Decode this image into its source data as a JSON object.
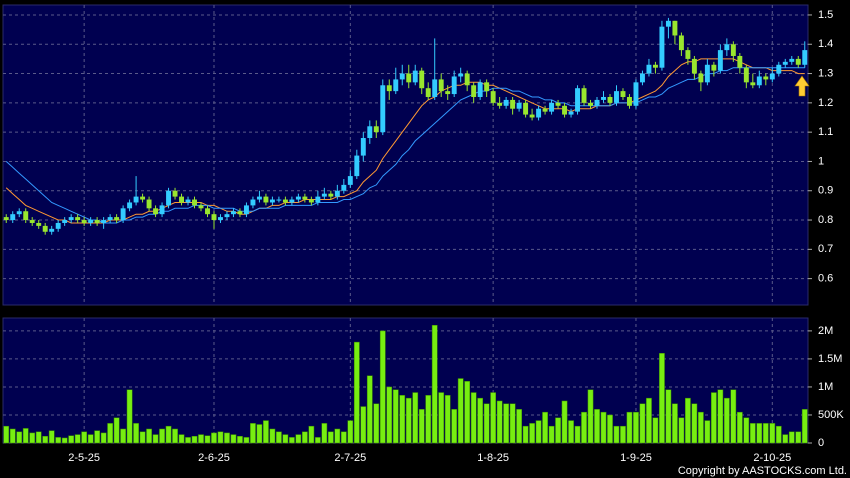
{
  "chart_data": {
    "type": "candlestick",
    "categories": [
      null,
      null,
      null,
      null,
      null,
      null,
      null,
      null,
      null,
      null,
      null,
      null,
      "2-5-25",
      null,
      null,
      null,
      null,
      null,
      null,
      null,
      null,
      null,
      null,
      null,
      null,
      null,
      null,
      null,
      null,
      null,
      null,
      null,
      "2-6-25",
      null,
      null,
      null,
      null,
      null,
      null,
      null,
      null,
      null,
      null,
      null,
      null,
      null,
      null,
      null,
      null,
      null,
      null,
      null,
      null,
      "2-7-25",
      null,
      null,
      null,
      null,
      null,
      null,
      null,
      null,
      null,
      null,
      null,
      null,
      null,
      null,
      null,
      null,
      null,
      null,
      null,
      null,
      null,
      "1-8-25",
      null,
      null,
      null,
      null,
      null,
      null,
      null,
      null,
      null,
      null,
      null,
      null,
      null,
      null,
      null,
      null,
      null,
      null,
      null,
      null,
      null,
      "1-9-25",
      null,
      null,
      null,
      null,
      null,
      null,
      null,
      null,
      null,
      null,
      null,
      null,
      null,
      null,
      null,
      null,
      null,
      null,
      null,
      null,
      "2-10-25",
      null,
      null,
      null,
      null,
      null
    ],
    "ohlc": [
      [
        0.81,
        0.82,
        0.79,
        0.8
      ],
      [
        0.8,
        0.83,
        0.79,
        0.82
      ],
      [
        0.82,
        0.84,
        0.81,
        0.83
      ],
      [
        0.83,
        0.84,
        0.79,
        0.8
      ],
      [
        0.8,
        0.81,
        0.78,
        0.79
      ],
      [
        0.79,
        0.8,
        0.77,
        0.78
      ],
      [
        0.78,
        0.79,
        0.75,
        0.76
      ],
      [
        0.76,
        0.78,
        0.75,
        0.77
      ],
      [
        0.77,
        0.8,
        0.76,
        0.79
      ],
      [
        0.79,
        0.81,
        0.78,
        0.8
      ],
      [
        0.8,
        0.82,
        0.79,
        0.81
      ],
      [
        0.81,
        0.82,
        0.79,
        0.8
      ],
      [
        0.8,
        0.81,
        0.78,
        0.79
      ],
      [
        0.79,
        0.81,
        0.78,
        0.8
      ],
      [
        0.8,
        0.81,
        0.78,
        0.79
      ],
      [
        0.79,
        0.81,
        0.77,
        0.8
      ],
      [
        0.8,
        0.82,
        0.79,
        0.81
      ],
      [
        0.81,
        0.82,
        0.79,
        0.8
      ],
      [
        0.8,
        0.85,
        0.79,
        0.84
      ],
      [
        0.84,
        0.87,
        0.83,
        0.86
      ],
      [
        0.86,
        0.95,
        0.85,
        0.88
      ],
      [
        0.88,
        0.89,
        0.86,
        0.87
      ],
      [
        0.87,
        0.88,
        0.83,
        0.84
      ],
      [
        0.84,
        0.85,
        0.81,
        0.82
      ],
      [
        0.82,
        0.86,
        0.81,
        0.85
      ],
      [
        0.85,
        0.91,
        0.84,
        0.9
      ],
      [
        0.9,
        0.91,
        0.87,
        0.88
      ],
      [
        0.88,
        0.89,
        0.85,
        0.86
      ],
      [
        0.86,
        0.88,
        0.85,
        0.87
      ],
      [
        0.87,
        0.88,
        0.84,
        0.85
      ],
      [
        0.85,
        0.86,
        0.83,
        0.84
      ],
      [
        0.84,
        0.85,
        0.81,
        0.82
      ],
      [
        0.82,
        0.83,
        0.77,
        0.8
      ],
      [
        0.8,
        0.82,
        0.79,
        0.81
      ],
      [
        0.81,
        0.83,
        0.8,
        0.82
      ],
      [
        0.82,
        0.84,
        0.81,
        0.83
      ],
      [
        0.83,
        0.84,
        0.81,
        0.82
      ],
      [
        0.82,
        0.86,
        0.81,
        0.85
      ],
      [
        0.85,
        0.88,
        0.84,
        0.87
      ],
      [
        0.87,
        0.9,
        0.86,
        0.88
      ],
      [
        0.88,
        0.89,
        0.85,
        0.86
      ],
      [
        0.86,
        0.88,
        0.85,
        0.87
      ],
      [
        0.87,
        0.88,
        0.86,
        0.87
      ],
      [
        0.87,
        0.88,
        0.85,
        0.86
      ],
      [
        0.86,
        0.88,
        0.85,
        0.87
      ],
      [
        0.87,
        0.89,
        0.86,
        0.88
      ],
      [
        0.88,
        0.89,
        0.86,
        0.87
      ],
      [
        0.87,
        0.88,
        0.85,
        0.86
      ],
      [
        0.86,
        0.9,
        0.85,
        0.88
      ],
      [
        0.88,
        0.91,
        0.87,
        0.89
      ],
      [
        0.89,
        0.9,
        0.87,
        0.88
      ],
      [
        0.88,
        0.92,
        0.87,
        0.9
      ],
      [
        0.9,
        0.94,
        0.89,
        0.92
      ],
      [
        0.92,
        0.97,
        0.91,
        0.95
      ],
      [
        0.95,
        1.04,
        0.94,
        1.02
      ],
      [
        1.02,
        1.1,
        1.0,
        1.08
      ],
      [
        1.08,
        1.14,
        1.06,
        1.12
      ],
      [
        1.12,
        1.14,
        1.08,
        1.1
      ],
      [
        1.1,
        1.28,
        1.09,
        1.26
      ],
      [
        1.26,
        1.28,
        1.21,
        1.24
      ],
      [
        1.24,
        1.32,
        1.23,
        1.28
      ],
      [
        1.28,
        1.33,
        1.26,
        1.3
      ],
      [
        1.3,
        1.33,
        1.25,
        1.27
      ],
      [
        1.27,
        1.33,
        1.26,
        1.31
      ],
      [
        1.31,
        1.32,
        1.23,
        1.25
      ],
      [
        1.25,
        1.27,
        1.21,
        1.22
      ],
      [
        1.22,
        1.42,
        1.21,
        1.28
      ],
      [
        1.28,
        1.3,
        1.22,
        1.24
      ],
      [
        1.24,
        1.26,
        1.21,
        1.23
      ],
      [
        1.23,
        1.31,
        1.22,
        1.29
      ],
      [
        1.29,
        1.32,
        1.27,
        1.3
      ],
      [
        1.3,
        1.31,
        1.24,
        1.26
      ],
      [
        1.26,
        1.27,
        1.2,
        1.22
      ],
      [
        1.22,
        1.28,
        1.21,
        1.27
      ],
      [
        1.27,
        1.28,
        1.22,
        1.24
      ],
      [
        1.24,
        1.25,
        1.19,
        1.2
      ],
      [
        1.2,
        1.22,
        1.18,
        1.19
      ],
      [
        1.19,
        1.22,
        1.18,
        1.21
      ],
      [
        1.21,
        1.22,
        1.16,
        1.18
      ],
      [
        1.18,
        1.21,
        1.17,
        1.2
      ],
      [
        1.2,
        1.21,
        1.15,
        1.16
      ],
      [
        1.16,
        1.18,
        1.14,
        1.15
      ],
      [
        1.15,
        1.19,
        1.14,
        1.18
      ],
      [
        1.18,
        1.19,
        1.16,
        1.17
      ],
      [
        1.17,
        1.21,
        1.16,
        1.2
      ],
      [
        1.2,
        1.21,
        1.18,
        1.19
      ],
      [
        1.19,
        1.2,
        1.15,
        1.16
      ],
      [
        1.16,
        1.18,
        1.15,
        1.17
      ],
      [
        1.17,
        1.26,
        1.16,
        1.25
      ],
      [
        1.25,
        1.26,
        1.19,
        1.2
      ],
      [
        1.2,
        1.21,
        1.18,
        1.19
      ],
      [
        1.19,
        1.22,
        1.18,
        1.21
      ],
      [
        1.21,
        1.24,
        1.2,
        1.22
      ],
      [
        1.22,
        1.23,
        1.19,
        1.2
      ],
      [
        1.2,
        1.26,
        1.19,
        1.24
      ],
      [
        1.24,
        1.25,
        1.21,
        1.22
      ],
      [
        1.22,
        1.23,
        1.18,
        1.19
      ],
      [
        1.19,
        1.28,
        1.18,
        1.27
      ],
      [
        1.27,
        1.31,
        1.26,
        1.3
      ],
      [
        1.3,
        1.35,
        1.29,
        1.33
      ],
      [
        1.33,
        1.34,
        1.3,
        1.32
      ],
      [
        1.32,
        1.48,
        1.31,
        1.46
      ],
      [
        1.46,
        1.49,
        1.42,
        1.48
      ],
      [
        1.48,
        1.48,
        1.4,
        1.43
      ],
      [
        1.43,
        1.44,
        1.36,
        1.38
      ],
      [
        1.38,
        1.39,
        1.33,
        1.35
      ],
      [
        1.35,
        1.36,
        1.28,
        1.3
      ],
      [
        1.3,
        1.31,
        1.24,
        1.27
      ],
      [
        1.27,
        1.35,
        1.26,
        1.33
      ],
      [
        1.33,
        1.34,
        1.29,
        1.31
      ],
      [
        1.31,
        1.4,
        1.3,
        1.38
      ],
      [
        1.38,
        1.42,
        1.36,
        1.4
      ],
      [
        1.4,
        1.41,
        1.34,
        1.36
      ],
      [
        1.36,
        1.37,
        1.3,
        1.32
      ],
      [
        1.32,
        1.33,
        1.25,
        1.27
      ],
      [
        1.27,
        1.3,
        1.25,
        1.26
      ],
      [
        1.26,
        1.31,
        1.25,
        1.29
      ],
      [
        1.29,
        1.3,
        1.26,
        1.28
      ],
      [
        1.28,
        1.32,
        1.27,
        1.3
      ],
      [
        1.3,
        1.34,
        1.29,
        1.33
      ],
      [
        1.33,
        1.35,
        1.32,
        1.34
      ],
      [
        1.34,
        1.36,
        1.33,
        1.35
      ],
      [
        1.35,
        1.36,
        1.32,
        1.33
      ],
      [
        1.33,
        1.41,
        1.32,
        1.38
      ]
    ],
    "up_color": "#33ccff",
    "down_color": "#99e62e",
    "moving_averages": [
      {
        "color": "#ff9933",
        "values": [
          0.91,
          0.89,
          0.87,
          0.85,
          0.84,
          0.83,
          0.82,
          0.81,
          0.8,
          0.8,
          0.79,
          0.79,
          0.79,
          0.79,
          0.79,
          0.79,
          0.8,
          0.8,
          0.8,
          0.81,
          0.82,
          0.82,
          0.83,
          0.83,
          0.84,
          0.85,
          0.86,
          0.86,
          0.86,
          0.86,
          0.86,
          0.85,
          0.85,
          0.84,
          0.83,
          0.83,
          0.82,
          0.82,
          0.83,
          0.84,
          0.84,
          0.85,
          0.85,
          0.86,
          0.86,
          0.86,
          0.87,
          0.87,
          0.87,
          0.87,
          0.87,
          0.88,
          0.88,
          0.89,
          0.9,
          0.93,
          0.95,
          0.97,
          1.01,
          1.04,
          1.07,
          1.1,
          1.13,
          1.16,
          1.19,
          1.21,
          1.22,
          1.24,
          1.25,
          1.26,
          1.26,
          1.27,
          1.27,
          1.27,
          1.26,
          1.26,
          1.25,
          1.24,
          1.23,
          1.22,
          1.21,
          1.2,
          1.19,
          1.18,
          1.18,
          1.18,
          1.18,
          1.17,
          1.18,
          1.18,
          1.18,
          1.19,
          1.19,
          1.19,
          1.2,
          1.2,
          1.2,
          1.21,
          1.22,
          1.23,
          1.24,
          1.26,
          1.29,
          1.31,
          1.33,
          1.34,
          1.34,
          1.35,
          1.35,
          1.35,
          1.35,
          1.35,
          1.35,
          1.34,
          1.33,
          1.32,
          1.32,
          1.32,
          1.31,
          1.31,
          1.31,
          1.31,
          1.3,
          1.3
        ]
      },
      {
        "color": "#3399ff",
        "values": [
          1.0,
          0.98,
          0.96,
          0.94,
          0.92,
          0.9,
          0.88,
          0.86,
          0.85,
          0.84,
          0.83,
          0.82,
          0.81,
          0.8,
          0.8,
          0.79,
          0.79,
          0.79,
          0.8,
          0.8,
          0.81,
          0.81,
          0.82,
          0.82,
          0.83,
          0.83,
          0.84,
          0.84,
          0.84,
          0.85,
          0.85,
          0.85,
          0.84,
          0.84,
          0.84,
          0.84,
          0.83,
          0.83,
          0.83,
          0.84,
          0.84,
          0.84,
          0.84,
          0.85,
          0.85,
          0.85,
          0.85,
          0.85,
          0.86,
          0.86,
          0.86,
          0.86,
          0.87,
          0.87,
          0.88,
          0.89,
          0.91,
          0.92,
          0.95,
          0.97,
          0.99,
          1.02,
          1.04,
          1.07,
          1.09,
          1.11,
          1.13,
          1.15,
          1.17,
          1.19,
          1.21,
          1.22,
          1.23,
          1.24,
          1.24,
          1.25,
          1.25,
          1.25,
          1.24,
          1.24,
          1.23,
          1.22,
          1.22,
          1.21,
          1.21,
          1.2,
          1.2,
          1.19,
          1.19,
          1.19,
          1.19,
          1.19,
          1.19,
          1.19,
          1.2,
          1.2,
          1.2,
          1.2,
          1.21,
          1.22,
          1.22,
          1.23,
          1.25,
          1.26,
          1.27,
          1.28,
          1.28,
          1.29,
          1.3,
          1.3,
          1.31,
          1.31,
          1.32,
          1.32,
          1.32,
          1.32,
          1.32,
          1.32,
          1.32,
          1.32,
          1.32,
          1.32,
          1.32,
          1.32
        ]
      }
    ],
    "ylim": [
      0.51,
      1.534
    ],
    "yticks": [
      0.6,
      0.7,
      0.8,
      0.9,
      1,
      1.1,
      1.2,
      1.3,
      1.4,
      1.5
    ],
    "volume": [
      300000,
      250000,
      200000,
      260000,
      180000,
      200000,
      120000,
      220000,
      100000,
      90000,
      130000,
      150000,
      200000,
      150000,
      220000,
      180000,
      350000,
      450000,
      250000,
      950000,
      350000,
      200000,
      250000,
      150000,
      250000,
      300000,
      250000,
      150000,
      100000,
      120000,
      150000,
      130000,
      180000,
      200000,
      180000,
      150000,
      120000,
      100000,
      350000,
      330000,
      400000,
      250000,
      200000,
      150000,
      100000,
      150000,
      200000,
      300000,
      100000,
      350000,
      200000,
      250000,
      200000,
      400000,
      1800000,
      650000,
      1200000,
      700000,
      2000000,
      1000000,
      950000,
      850000,
      800000,
      900000,
      600000,
      850000,
      2100000,
      900000,
      850000,
      600000,
      1150000,
      1100000,
      900000,
      800000,
      700000,
      900000,
      750000,
      700000,
      700000,
      600000,
      300000,
      350000,
      400000,
      550000,
      300000,
      450000,
      750000,
      400000,
      300000,
      550000,
      950000,
      600000,
      550000,
      500000,
      300000,
      300000,
      550000,
      550000,
      700000,
      800000,
      450000,
      1600000,
      950000,
      700000,
      450000,
      800000,
      700000,
      550000,
      400000,
      900000,
      950000,
      800000,
      950000,
      550000,
      450000,
      350000,
      350000,
      350000,
      350000,
      300000,
      150000,
      200000,
      200000,
      600000
    ],
    "volume_color": "#77ee11",
    "y2lim": [
      0,
      2230000
    ],
    "y2ticks": [
      0,
      {
        "value": 500000,
        "label": "500K"
      },
      {
        "value": 1000000,
        "label": "1M"
      },
      {
        "value": 1500000,
        "label": "1.5M"
      },
      {
        "value": 2000000,
        "label": "2M"
      }
    ],
    "grid": true,
    "copyright": "Copyright by AASTOCKS.com Ltd."
  }
}
